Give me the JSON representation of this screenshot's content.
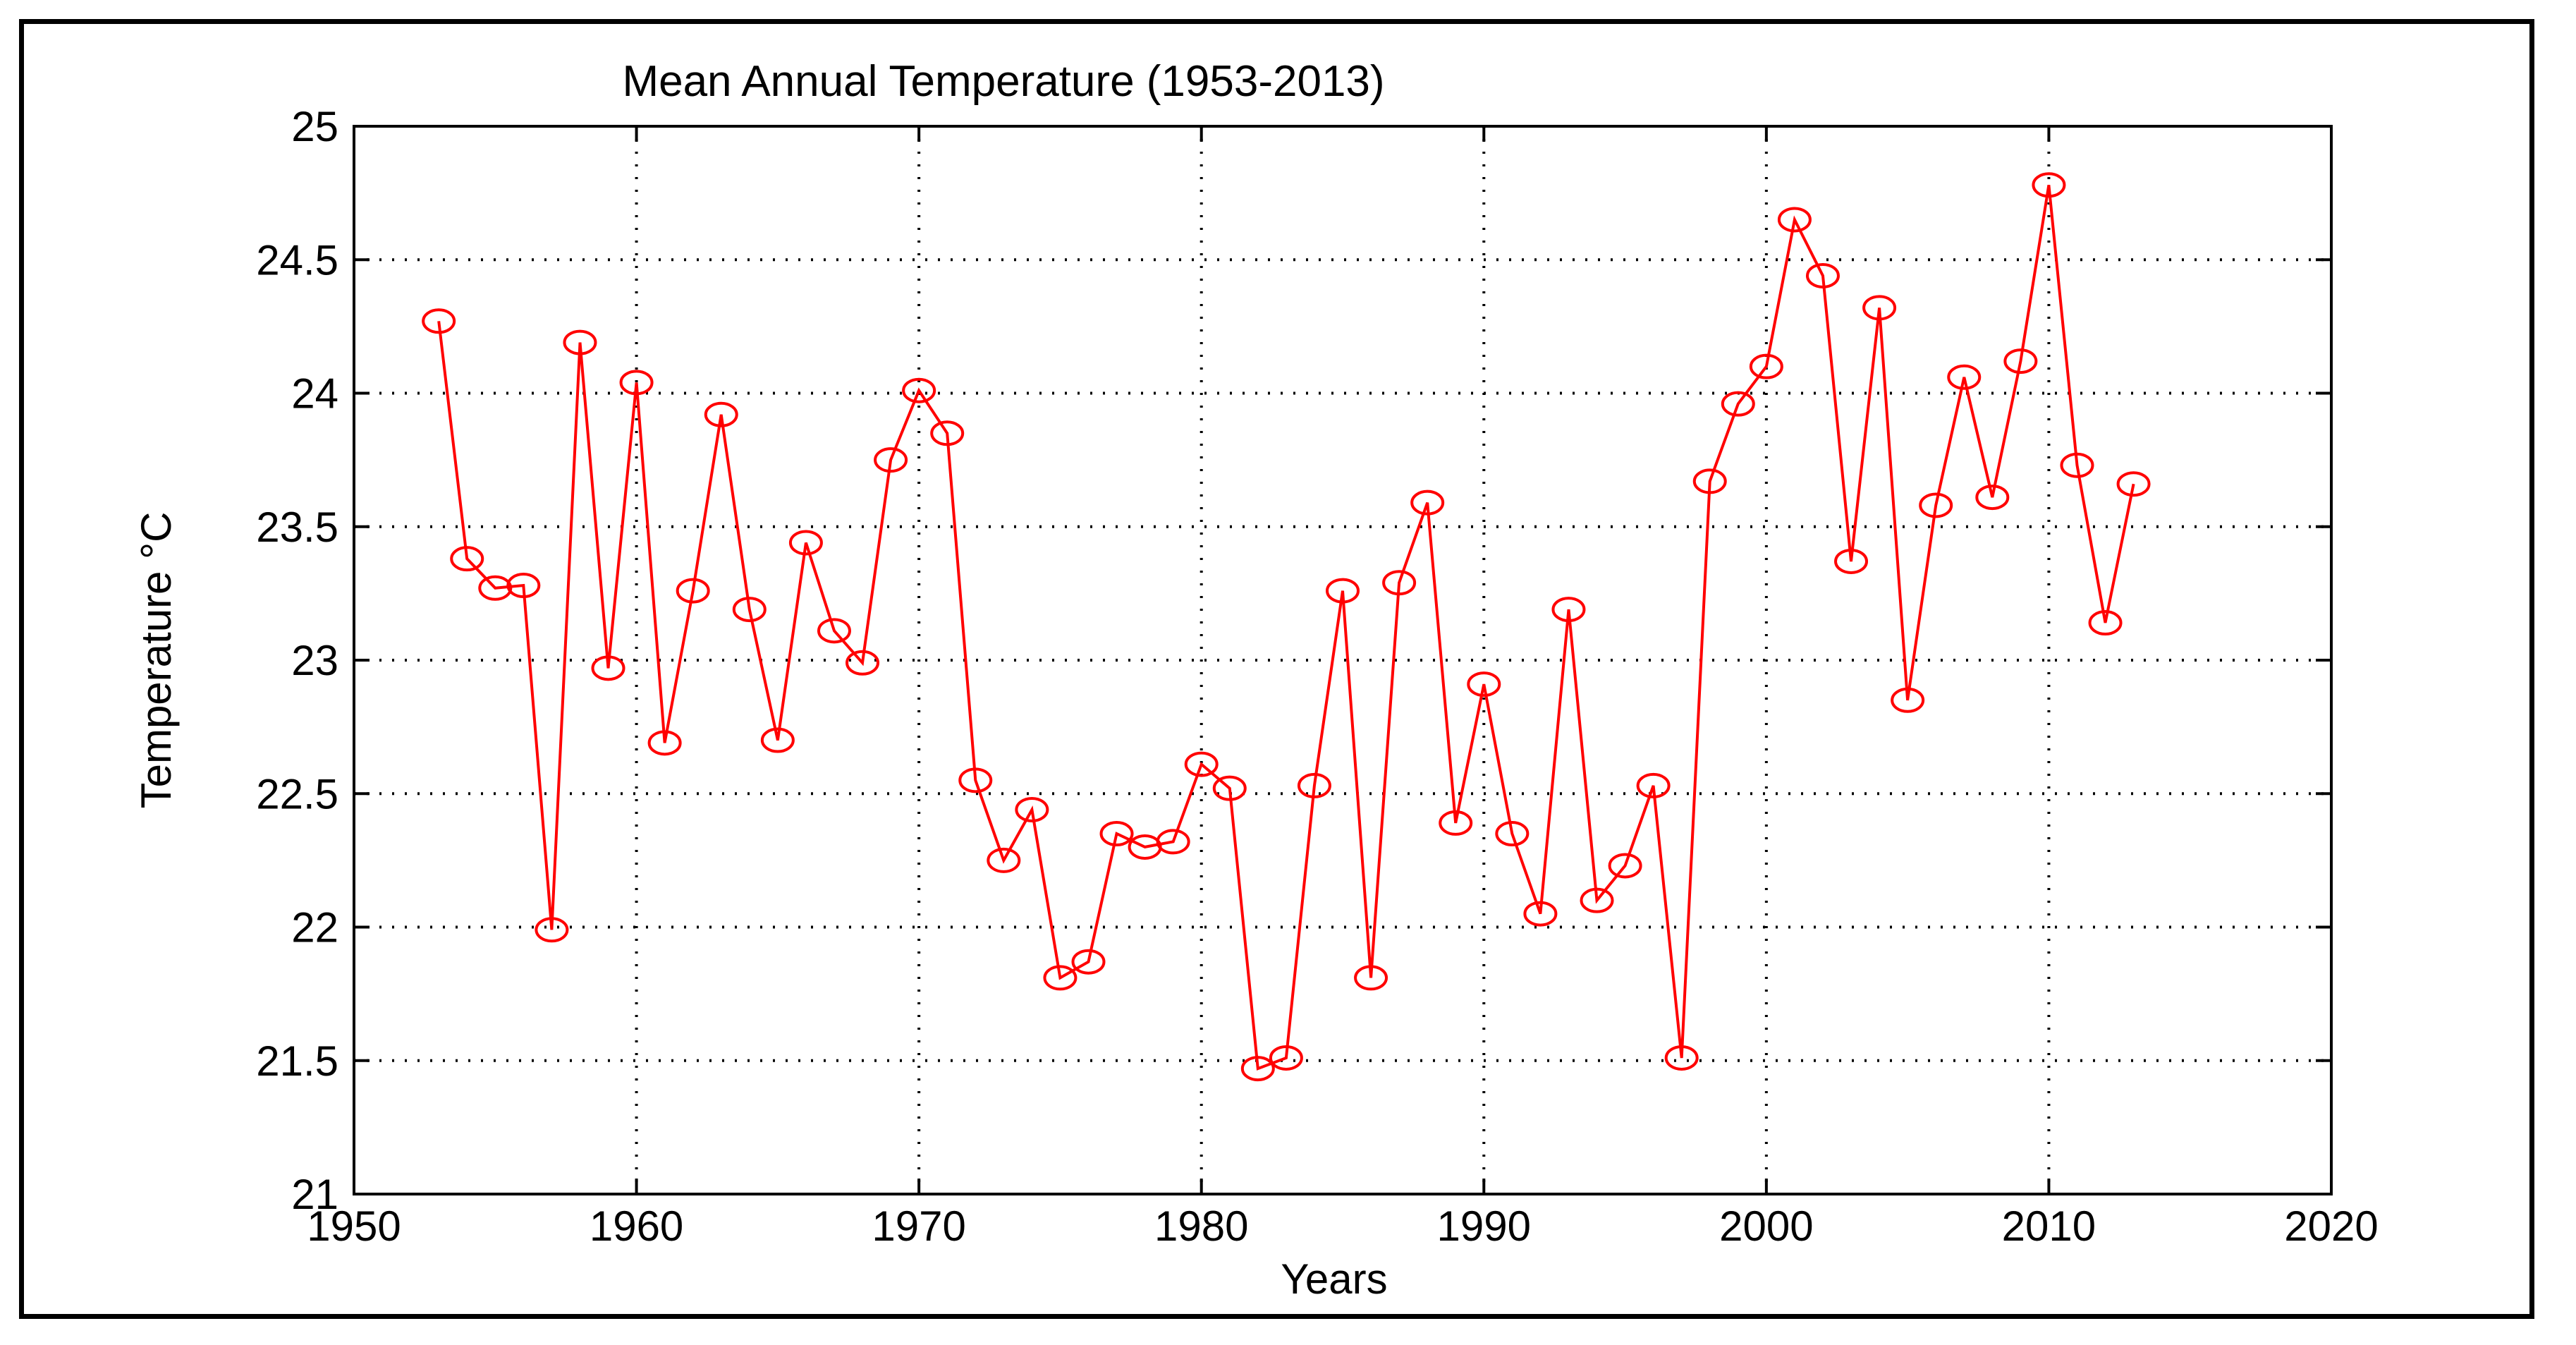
{
  "colors": {
    "series": "#ff0000",
    "axes": "#000000",
    "grid": "#000000",
    "background": "#ffffff"
  },
  "chart_data": {
    "type": "line",
    "title": "Mean Annual Temperature (1953-2013)",
    "xlabel": "Years",
    "ylabel": "Temperature °C",
    "xlim": [
      1950,
      2020
    ],
    "ylim": [
      21,
      25
    ],
    "xticks": [
      1950,
      1960,
      1970,
      1980,
      1990,
      2000,
      2010,
      2020
    ],
    "yticks": [
      21,
      21.5,
      22,
      22.5,
      23,
      23.5,
      24,
      24.5,
      25
    ],
    "xtick_labels": [
      "1950",
      "1960",
      "1970",
      "1980",
      "1990",
      "2000",
      "2010",
      "2020"
    ],
    "ytick_labels": [
      "21",
      "21.5",
      "22",
      "22.5",
      "23",
      "23.5",
      "24",
      "24.5",
      "25"
    ],
    "grid": true,
    "grid_style": "dotted",
    "marker": "circle",
    "series": [
      {
        "x": [
          1953,
          1954,
          1955,
          1956,
          1957,
          1958,
          1959,
          1960,
          1961,
          1962,
          1963,
          1964,
          1965,
          1966,
          1967,
          1968,
          1969,
          1970,
          1971,
          1972,
          1973,
          1974,
          1975,
          1976,
          1977,
          1978,
          1979,
          1980,
          1981,
          1982,
          1983,
          1984,
          1985,
          1986,
          1987,
          1988,
          1989,
          1990,
          1991,
          1992,
          1993,
          1994,
          1995,
          1996,
          1997,
          1998,
          1999,
          2000,
          2001,
          2002,
          2003,
          2004,
          2005,
          2006,
          2007,
          2008,
          2009,
          2010,
          2011,
          2012,
          2013
        ],
        "values": [
          24.27,
          23.38,
          23.27,
          23.28,
          21.99,
          24.19,
          22.97,
          24.04,
          22.69,
          23.26,
          23.92,
          23.19,
          22.7,
          23.44,
          23.11,
          22.99,
          23.75,
          24.01,
          23.85,
          22.55,
          22.25,
          22.44,
          21.81,
          21.87,
          22.35,
          22.3,
          22.32,
          22.61,
          22.52,
          21.47,
          21.51,
          22.53,
          23.26,
          21.81,
          23.29,
          23.59,
          22.39,
          22.91,
          22.35,
          22.05,
          23.19,
          22.1,
          22.23,
          22.53,
          21.51,
          23.67,
          23.96,
          24.1,
          24.65,
          24.44,
          23.37,
          24.32,
          22.85,
          23.58,
          24.06,
          23.61,
          24.12,
          24.78,
          23.73,
          23.14,
          23.66
        ]
      }
    ]
  }
}
